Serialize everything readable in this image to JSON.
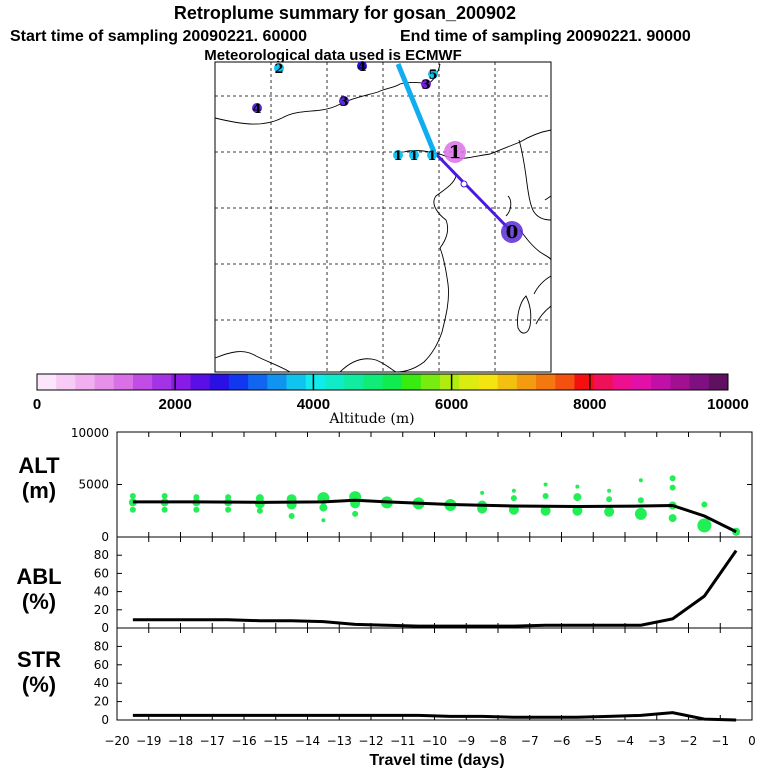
{
  "header": {
    "title": "Retroplume summary for gosan_200902",
    "start_time": "Start time of sampling 20090221. 60000",
    "end_time": "End time of sampling 20090221. 90000",
    "met": "Meteorological data used is ECMWF"
  },
  "colorbar": {
    "label": "Altitude (m)",
    "ticks": [
      "0",
      "2000",
      "4000",
      "6000",
      "8000",
      "10000"
    ],
    "colors": [
      "#fbe6fb",
      "#f6ccf6",
      "#f0b0f0",
      "#e690ea",
      "#da70e6",
      "#c24de6",
      "#a533e6",
      "#8a1ae6",
      "#5a0fe6",
      "#2b10e6",
      "#1038f0",
      "#1066f0",
      "#1094f0",
      "#10c4f0",
      "#10ecec",
      "#10ecc8",
      "#10eca0",
      "#10ec78",
      "#10ec50",
      "#38ec10",
      "#78ec10",
      "#b0ec10",
      "#dcec10",
      "#f4e410",
      "#f4c010",
      "#f49c10",
      "#f47810",
      "#f45010",
      "#f41010",
      "#f0105a",
      "#ec1090",
      "#e010a8",
      "#c010a8",
      "#a01090",
      "#801080",
      "#601060"
    ]
  },
  "map": {
    "markers": [
      {
        "label": "0",
        "size": "big",
        "color": "#5a2bd6"
      },
      {
        "label": "1",
        "size": "big",
        "color": "#da70e6"
      },
      {
        "label": "1",
        "size": "small",
        "color": "#10c4f0"
      },
      {
        "label": "1",
        "size": "small",
        "color": "#10c4f0"
      },
      {
        "label": "1",
        "size": "small",
        "color": "#10c4f0"
      },
      {
        "label": "2",
        "size": "small",
        "color": "#10c4f0"
      },
      {
        "label": "3",
        "size": "small",
        "color": "#5a2bd6"
      },
      {
        "label": "3",
        "size": "small",
        "color": "#7a1ae0"
      },
      {
        "label": "4",
        "size": "small",
        "color": "#2b10e6"
      },
      {
        "label": "4",
        "size": "small",
        "color": "#5a2bd6"
      },
      {
        "label": "5",
        "size": "small",
        "color": "#10c4f0"
      }
    ]
  },
  "chart_data": [
    {
      "type": "scatter",
      "panel": "ALT",
      "ylabel_line1": "ALT",
      "ylabel_line2": "(m)",
      "ylim": [
        0,
        10000
      ],
      "yticks": [
        "10000",
        "5000",
        "0"
      ],
      "marker_color": "#22ee55",
      "line_color": "#000000",
      "median_line": {
        "x": [
          -19.5,
          -17.5,
          -15.5,
          -13.5,
          -12.5,
          -11.5,
          -9.5,
          -7.5,
          -5.5,
          -3.5,
          -2.5,
          -1.5,
          -0.5
        ],
        "y": [
          3350,
          3350,
          3300,
          3350,
          3500,
          3350,
          3100,
          2950,
          2900,
          2950,
          3000,
          2000,
          500
        ]
      },
      "points": [
        {
          "x": -19.5,
          "y": 3900,
          "r": 3
        },
        {
          "x": -19.5,
          "y": 3300,
          "r": 4
        },
        {
          "x": -19.5,
          "y": 2600,
          "r": 3
        },
        {
          "x": -18.5,
          "y": 3900,
          "r": 3
        },
        {
          "x": -18.5,
          "y": 3300,
          "r": 4
        },
        {
          "x": -18.5,
          "y": 2600,
          "r": 3
        },
        {
          "x": -17.5,
          "y": 3800,
          "r": 3
        },
        {
          "x": -17.5,
          "y": 3300,
          "r": 4
        },
        {
          "x": -17.5,
          "y": 2600,
          "r": 3
        },
        {
          "x": -16.5,
          "y": 3800,
          "r": 3
        },
        {
          "x": -16.5,
          "y": 3300,
          "r": 4
        },
        {
          "x": -16.5,
          "y": 2600,
          "r": 3
        },
        {
          "x": -15.5,
          "y": 3700,
          "r": 4
        },
        {
          "x": -15.5,
          "y": 3200,
          "r": 5
        },
        {
          "x": -15.5,
          "y": 2500,
          "r": 3
        },
        {
          "x": -14.5,
          "y": 3600,
          "r": 5
        },
        {
          "x": -14.5,
          "y": 3100,
          "r": 5
        },
        {
          "x": -14.5,
          "y": 2000,
          "r": 3
        },
        {
          "x": -13.5,
          "y": 3700,
          "r": 6
        },
        {
          "x": -13.5,
          "y": 2800,
          "r": 4
        },
        {
          "x": -13.5,
          "y": 1600,
          "r": 2
        },
        {
          "x": -12.5,
          "y": 3800,
          "r": 6
        },
        {
          "x": -12.5,
          "y": 3200,
          "r": 5
        },
        {
          "x": -12.5,
          "y": 2200,
          "r": 3
        },
        {
          "x": -11.5,
          "y": 3300,
          "r": 6
        },
        {
          "x": -10.5,
          "y": 3200,
          "r": 6
        },
        {
          "x": -9.5,
          "y": 3050,
          "r": 6
        },
        {
          "x": -8.5,
          "y": 3000,
          "r": 5
        },
        {
          "x": -8.5,
          "y": 2700,
          "r": 5
        },
        {
          "x": -8.5,
          "y": 4200,
          "r": 2
        },
        {
          "x": -7.5,
          "y": 4400,
          "r": 2
        },
        {
          "x": -7.5,
          "y": 3700,
          "r": 3
        },
        {
          "x": -7.5,
          "y": 2600,
          "r": 5
        },
        {
          "x": -6.5,
          "y": 5000,
          "r": 2
        },
        {
          "x": -6.5,
          "y": 3900,
          "r": 3
        },
        {
          "x": -6.5,
          "y": 2500,
          "r": 5
        },
        {
          "x": -5.5,
          "y": 4800,
          "r": 2
        },
        {
          "x": -5.5,
          "y": 3800,
          "r": 4
        },
        {
          "x": -5.5,
          "y": 2500,
          "r": 5
        },
        {
          "x": -4.5,
          "y": 4400,
          "r": 2
        },
        {
          "x": -4.5,
          "y": 3600,
          "r": 3
        },
        {
          "x": -4.5,
          "y": 2400,
          "r": 5
        },
        {
          "x": -3.5,
          "y": 5400,
          "r": 2
        },
        {
          "x": -3.5,
          "y": 3500,
          "r": 3
        },
        {
          "x": -3.5,
          "y": 2200,
          "r": 6
        },
        {
          "x": -2.5,
          "y": 5600,
          "r": 3
        },
        {
          "x": -2.5,
          "y": 4700,
          "r": 3
        },
        {
          "x": -2.5,
          "y": 3000,
          "r": 4
        },
        {
          "x": -2.5,
          "y": 1800,
          "r": 4
        },
        {
          "x": -1.5,
          "y": 3100,
          "r": 3
        },
        {
          "x": -1.5,
          "y": 1100,
          "r": 7
        },
        {
          "x": -0.5,
          "y": 500,
          "r": 4
        }
      ]
    },
    {
      "type": "line",
      "panel": "ABL",
      "ylabel_line1": "ABL",
      "ylabel_line2": "(%)",
      "ylim": [
        0,
        100
      ],
      "yticks": [
        "80",
        "60",
        "40",
        "20",
        "0"
      ],
      "x": [
        -19.5,
        -18.5,
        -17.5,
        -16.5,
        -15.5,
        -14.5,
        -13.5,
        -12.5,
        -11.5,
        -10.5,
        -9.5,
        -8.5,
        -7.5,
        -6.5,
        -5.5,
        -4.5,
        -3.5,
        -2.5,
        -1.5,
        -0.5
      ],
      "y": [
        9,
        9,
        9,
        9,
        8,
        8,
        7,
        4,
        3,
        2,
        2,
        2,
        2,
        3,
        3,
        3,
        3,
        10,
        35,
        85
      ]
    },
    {
      "type": "line",
      "panel": "STR",
      "ylabel_line1": "STR",
      "ylabel_line2": "(%)",
      "ylim": [
        0,
        100
      ],
      "yticks": [
        "80",
        "60",
        "40",
        "20",
        "0"
      ],
      "x": [
        -19.5,
        -18.5,
        -17.5,
        -16.5,
        -15.5,
        -14.5,
        -13.5,
        -12.5,
        -11.5,
        -10.5,
        -9.5,
        -8.5,
        -7.5,
        -6.5,
        -5.5,
        -4.5,
        -3.5,
        -2.5,
        -1.5,
        -0.5
      ],
      "y": [
        5,
        5,
        5,
        5,
        5,
        5,
        5,
        5,
        5,
        5,
        4,
        4,
        3,
        3,
        3,
        4,
        5,
        8,
        1,
        0
      ]
    }
  ],
  "xaxis": {
    "label": "Travel time (days)",
    "xlim": [
      -20,
      0
    ],
    "ticks": [
      "−20",
      "−19",
      "−18",
      "−17",
      "−16",
      "−15",
      "−14",
      "−13",
      "−12",
      "−11",
      "−10",
      "−9",
      "−8",
      "−7",
      "−6",
      "−5",
      "−4",
      "−3",
      "−2",
      "−1",
      "0"
    ]
  }
}
